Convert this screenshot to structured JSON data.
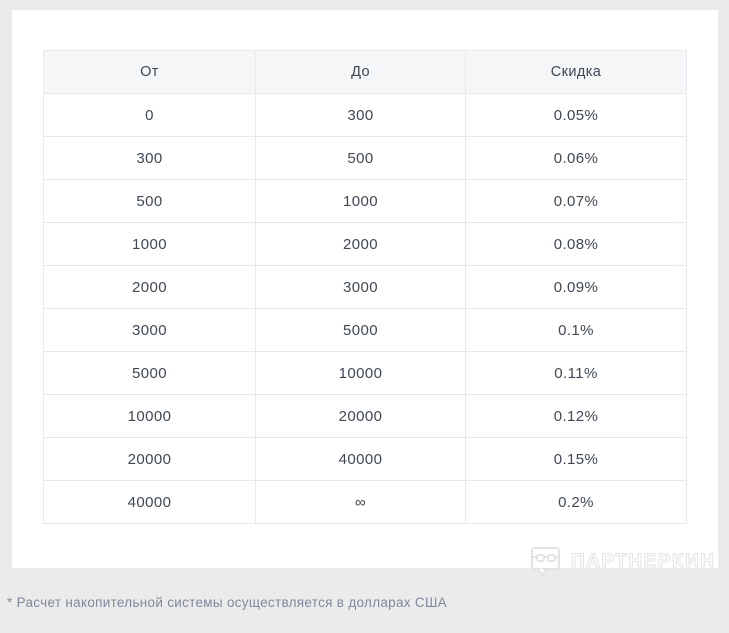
{
  "table": {
    "headers": [
      "От",
      "До",
      "Скидка"
    ],
    "rows": [
      [
        "0",
        "300",
        "0.05%"
      ],
      [
        "300",
        "500",
        "0.06%"
      ],
      [
        "500",
        "1000",
        "0.07%"
      ],
      [
        "1000",
        "2000",
        "0.08%"
      ],
      [
        "2000",
        "3000",
        "0.09%"
      ],
      [
        "3000",
        "5000",
        "0.1%"
      ],
      [
        "5000",
        "10000",
        "0.11%"
      ],
      [
        "10000",
        "20000",
        "0.12%"
      ],
      [
        "20000",
        "40000",
        "0.15%"
      ],
      [
        "40000",
        "∞",
        "0.2%"
      ]
    ]
  },
  "watermark": {
    "label": "ПАРТНЕРКИН",
    "icon": "speech-bubble-glasses-icon"
  },
  "footnote": "* Расчет накопительной системы осуществляется в долларах США",
  "colors": {
    "page_background": "#ebebeb",
    "card_background": "#ffffff",
    "header_background": "#f5f6f8",
    "border": "#e7e9ec",
    "cell_text": "#3f4854",
    "footnote_text": "#7e8a9b",
    "watermark": "#e3e3e3"
  }
}
